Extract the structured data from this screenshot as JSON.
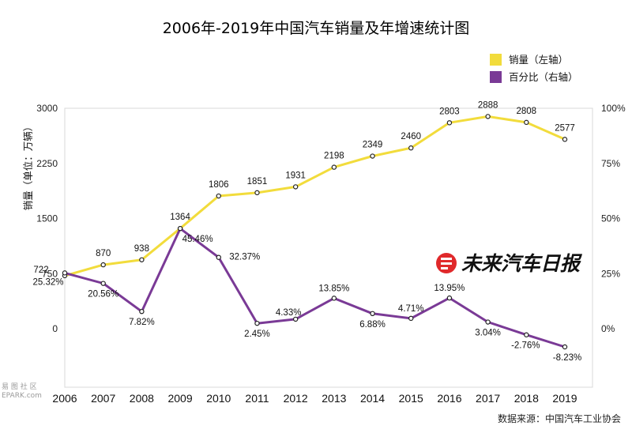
{
  "chart_data": {
    "type": "line",
    "title": "2006年-2019年中国汽车销量及年增速统计图",
    "ylabel": "销量（单位：万辆）",
    "x": [
      "2006",
      "2007",
      "2008",
      "2009",
      "2010",
      "2011",
      "2012",
      "2013",
      "2014",
      "2015",
      "2016",
      "2017",
      "2018",
      "2019"
    ],
    "ylim_left": [
      0,
      3000
    ],
    "yticks_left": [
      "3000",
      "2250",
      "1500",
      "750",
      "0"
    ],
    "ylim_right": [
      -0.1,
      1.0
    ],
    "yticks_right": [
      "100%",
      "75%",
      "50%",
      "25%",
      "0%"
    ],
    "grid": false,
    "legend_position": "top-right",
    "series": [
      {
        "name": "销量（左轴）",
        "axis": "left",
        "color": "#f2dc3c",
        "values": [
          722,
          870,
          938,
          1364,
          1806,
          1851,
          1931,
          2198,
          2349,
          2460,
          2803,
          2888,
          2808,
          2577
        ],
        "labels": [
          "722",
          "870",
          "938",
          "1364",
          "1806",
          "1851",
          "1931",
          "2198",
          "2349",
          "2460",
          "2803",
          "2888",
          "2808",
          "2577"
        ]
      },
      {
        "name": "百分比（右轴）",
        "axis": "right",
        "color": "#7a3a96",
        "values": [
          0.2532,
          0.2056,
          0.0782,
          0.4546,
          0.3237,
          0.0245,
          0.0433,
          0.1385,
          0.0688,
          0.0471,
          0.1395,
          0.0304,
          -0.0276,
          -0.0823
        ],
        "labels": [
          "25.32%",
          "20.56%",
          "7.82%",
          "45.46%",
          "32.37%",
          "2.45%",
          "4.33%",
          "13.85%",
          "6.88%",
          "4.71%",
          "13.95%",
          "3.04%",
          "-2.76%",
          "-8.23%"
        ]
      }
    ],
    "source": "数据来源：中国汽车工业协会",
    "brand": "未来汽车日报",
    "watermark": "易 图 社 区",
    "watermark_sub": "EPARK.com"
  }
}
